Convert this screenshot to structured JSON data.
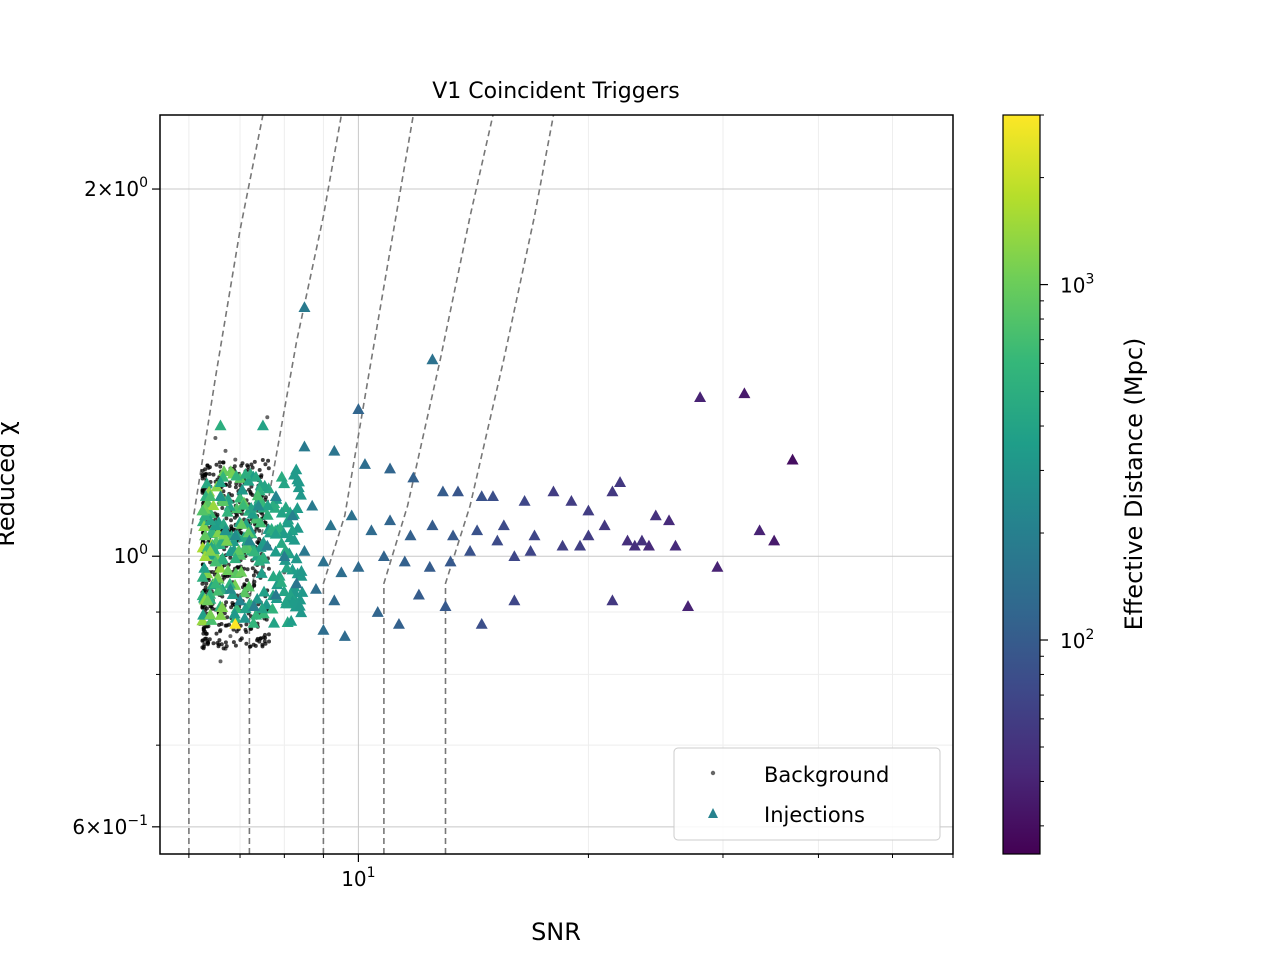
{
  "chart_data": {
    "type": "scatter",
    "title": "V1 Coincident Triggers",
    "xlabel": "SNR",
    "ylabel": "Reduced χ",
    "xscale": "log",
    "yscale": "log",
    "xlim": [
      5.5,
      60
    ],
    "ylim": [
      0.57,
      2.3
    ],
    "grid": true,
    "legend_position": "lower-right",
    "x_ticks": [
      {
        "value": 10,
        "label": "10",
        "exp": "1"
      }
    ],
    "y_ticks": [
      {
        "value": 0.6,
        "mant": "6",
        "exp": "−1"
      },
      {
        "value": 1,
        "mant": "",
        "exp": "0"
      },
      {
        "value": 2,
        "mant": "2",
        "exp": "0"
      }
    ],
    "colorbar": {
      "label": "Effective Distance (Mpc)",
      "scale": "log",
      "min": 25,
      "max": 3000,
      "colormap": [
        "#440154",
        "#482878",
        "#3e4989",
        "#31688e",
        "#26828e",
        "#1f9e89",
        "#35b779",
        "#6ece58",
        "#b5de2b",
        "#fde725"
      ],
      "ticks": [
        {
          "value": 100,
          "mant": "10",
          "exp": "2"
        },
        {
          "value": 1000,
          "mant": "10",
          "exp": "3"
        }
      ]
    },
    "contours": [
      {
        "snr_floor": 6.0,
        "points": [
          [
            6.0,
            0.57
          ],
          [
            6.0,
            1.02
          ],
          [
            6.5,
            1.4
          ],
          [
            7.0,
            1.85
          ],
          [
            7.5,
            2.3
          ]
        ]
      },
      {
        "snr_floor": 7.2,
        "points": [
          [
            7.2,
            0.57
          ],
          [
            7.2,
            0.92
          ],
          [
            7.6,
            1.1
          ],
          [
            8.3,
            1.5
          ],
          [
            9.0,
            1.9
          ],
          [
            9.5,
            2.3
          ]
        ]
      },
      {
        "snr_floor": 9.0,
        "points": [
          [
            9.0,
            0.57
          ],
          [
            9.0,
            0.95
          ],
          [
            9.6,
            1.08
          ],
          [
            10.3,
            1.4
          ],
          [
            11.2,
            1.9
          ],
          [
            11.8,
            2.3
          ]
        ]
      },
      {
        "snr_floor": 10.8,
        "points": [
          [
            10.8,
            0.57
          ],
          [
            10.8,
            0.95
          ],
          [
            11.6,
            1.1
          ],
          [
            12.8,
            1.45
          ],
          [
            14.0,
            1.9
          ],
          [
            15.0,
            2.3
          ]
        ]
      },
      {
        "snr_floor": 13.0,
        "points": [
          [
            13.0,
            0.57
          ],
          [
            13.0,
            0.95
          ],
          [
            14.0,
            1.1
          ],
          [
            15.5,
            1.45
          ],
          [
            17.0,
            1.9
          ],
          [
            18.0,
            2.3
          ]
        ]
      }
    ],
    "series": [
      {
        "name": "Background",
        "marker": "dot",
        "color": "#000000",
        "points": [
          [
            6.8,
            1.18
          ],
          [
            7.6,
            1.3
          ],
          [
            6.5,
            1.25
          ],
          [
            6.7,
            1.22
          ],
          [
            6.9,
            1.2
          ],
          [
            7.0,
            1.15
          ],
          [
            6.6,
            0.87
          ],
          [
            6.7,
            0.84
          ],
          [
            6.8,
            0.86
          ],
          [
            6.6,
            0.82
          ],
          [
            7.2,
            0.93
          ],
          [
            7.5,
            0.98
          ],
          [
            8.0,
            0.97
          ],
          [
            6.3,
            1.16
          ],
          [
            6.2,
            0.88
          ]
        ]
      },
      {
        "name": "Injections",
        "marker": "triangle",
        "color": "#26828e",
        "points": [
          [
            8.5,
            1.6,
            180
          ],
          [
            12.5,
            1.45,
            150
          ],
          [
            10.0,
            1.32,
            120
          ],
          [
            7.5,
            1.28,
            400
          ],
          [
            6.6,
            1.28,
            500
          ],
          [
            8.5,
            1.23,
            180
          ],
          [
            9.3,
            1.22,
            160
          ],
          [
            10.2,
            1.19,
            140
          ],
          [
            11.0,
            1.18,
            120
          ],
          [
            11.8,
            1.16,
            110
          ],
          [
            12.9,
            1.13,
            100
          ],
          [
            13.5,
            1.13,
            90
          ],
          [
            14.5,
            1.12,
            85
          ],
          [
            15.0,
            1.12,
            80
          ],
          [
            16.5,
            1.11,
            70
          ],
          [
            18.0,
            1.13,
            60
          ],
          [
            19.0,
            1.11,
            60
          ],
          [
            22.0,
            1.15,
            55
          ],
          [
            20.0,
            1.09,
            60
          ],
          [
            21.5,
            1.13,
            55
          ],
          [
            24.5,
            1.08,
            50
          ],
          [
            28.0,
            1.35,
            40
          ],
          [
            32.0,
            1.36,
            35
          ],
          [
            37.0,
            1.2,
            30
          ],
          [
            35.0,
            1.03,
            35
          ],
          [
            33.5,
            1.05,
            40
          ],
          [
            26.0,
            1.02,
            45
          ],
          [
            24.0,
            1.02,
            45
          ],
          [
            23.0,
            1.02,
            48
          ],
          [
            22.5,
            1.03,
            48
          ],
          [
            21.5,
            0.92,
            55
          ],
          [
            27.0,
            0.91,
            40
          ],
          [
            29.5,
            0.98,
            40
          ],
          [
            20.0,
            1.04,
            60
          ],
          [
            19.5,
            1.02,
            62
          ],
          [
            17.0,
            1.04,
            68
          ],
          [
            16.0,
            1.0,
            70
          ],
          [
            15.2,
            1.03,
            75
          ],
          [
            14.0,
            1.01,
            85
          ],
          [
            13.2,
            0.99,
            95
          ],
          [
            12.4,
            0.98,
            100
          ],
          [
            11.5,
            0.99,
            110
          ],
          [
            10.8,
            1.0,
            115
          ],
          [
            10.0,
            0.98,
            130
          ],
          [
            9.5,
            0.97,
            140
          ],
          [
            9.0,
            0.99,
            150
          ],
          [
            8.5,
            1.01,
            170
          ],
          [
            8.0,
            1.0,
            190
          ],
          [
            7.6,
            1.02,
            200
          ],
          [
            7.2,
            1.03,
            230
          ],
          [
            6.9,
            1.04,
            260
          ],
          [
            6.7,
            1.05,
            300
          ],
          [
            6.5,
            1.06,
            350
          ],
          [
            6.4,
            1.07,
            400
          ],
          [
            6.3,
            1.08,
            500
          ],
          [
            6.25,
            1.09,
            800
          ],
          [
            6.3,
            1.0,
            1500
          ],
          [
            6.6,
            1.12,
            300
          ],
          [
            6.5,
            0.95,
            600
          ],
          [
            6.35,
            0.92,
            1000
          ],
          [
            6.8,
            0.94,
            250
          ],
          [
            7.0,
            0.92,
            220
          ],
          [
            7.3,
            0.91,
            200
          ],
          [
            7.8,
            0.93,
            180
          ],
          [
            8.3,
            0.95,
            160
          ],
          [
            8.8,
            0.94,
            140
          ],
          [
            9.3,
            0.92,
            130
          ],
          [
            10.6,
            0.9,
            120
          ],
          [
            11.3,
            0.88,
            110
          ],
          [
            12.0,
            0.93,
            100
          ],
          [
            13.0,
            0.91,
            95
          ],
          [
            14.5,
            0.88,
            80
          ],
          [
            16.0,
            0.92,
            70
          ],
          [
            9.0,
            0.87,
            140
          ],
          [
            9.6,
            0.86,
            130
          ],
          [
            6.9,
            0.88,
            4000
          ],
          [
            7.1,
            0.89,
            300
          ],
          [
            6.4,
            1.12,
            700
          ],
          [
            6.6,
            1.15,
            400
          ],
          [
            7.4,
            1.1,
            250
          ],
          [
            7.8,
            1.12,
            220
          ],
          [
            8.2,
            1.08,
            200
          ],
          [
            8.7,
            1.1,
            180
          ],
          [
            9.2,
            1.06,
            160
          ],
          [
            9.8,
            1.08,
            150
          ],
          [
            10.4,
            1.05,
            130
          ],
          [
            11.0,
            1.07,
            120
          ],
          [
            11.7,
            1.04,
            110
          ],
          [
            12.5,
            1.06,
            100
          ],
          [
            13.3,
            1.04,
            95
          ],
          [
            14.3,
            1.05,
            85
          ],
          [
            15.5,
            1.06,
            75
          ],
          [
            16.8,
            1.01,
            68
          ],
          [
            18.5,
            1.02,
            62
          ],
          [
            21.0,
            1.06,
            55
          ],
          [
            23.5,
            1.03,
            50
          ],
          [
            25.5,
            1.07,
            45
          ],
          [
            6.3,
            1.04,
            900
          ],
          [
            6.4,
            1.01,
            1200
          ],
          [
            6.5,
            0.99,
            700
          ]
        ]
      }
    ]
  }
}
